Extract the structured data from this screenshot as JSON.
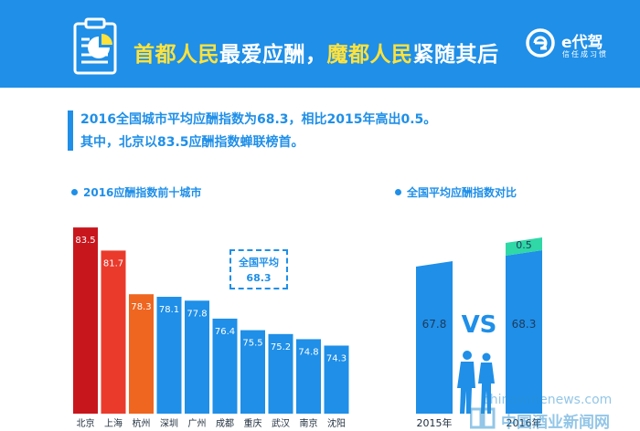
{
  "header": {
    "title_yellow_1": "首都人民",
    "title_white_1": "最爱应酬，",
    "title_yellow_2": "魔都人民",
    "title_white_2": "紧随其后",
    "brand_name": "e代驾",
    "brand_slogan": "信任成习惯",
    "colors": {
      "background": "#1f8fe8",
      "highlight": "#ffe23c"
    },
    "icons": [
      "clipboard-chart-icon",
      "edaijia-logo-icon"
    ]
  },
  "intro": {
    "line1": "2016全国城市平均应酬指数为68.3，相比2015年高出0.5。",
    "line2": "其中，北京以83.5应酬指数蝉联榜首。"
  },
  "sections": {
    "left_title": "2016应酬指数前十城市",
    "right_title": "全国平均应酬指数对比"
  },
  "avg_box": {
    "label": "全国平均",
    "value": "68.3"
  },
  "chart_data": [
    {
      "type": "bar",
      "title": "2016应酬指数前十城市",
      "categories": [
        "北京",
        "上海",
        "杭州",
        "深圳",
        "广州",
        "成都",
        "重庆",
        "武汉",
        "南京",
        "沈阳"
      ],
      "values": [
        83.5,
        81.7,
        78.3,
        78.1,
        77.8,
        76.4,
        75.5,
        75.2,
        74.8,
        74.3
      ],
      "value_labels": [
        "83.5",
        "81.7",
        "78.3",
        "78.1",
        "77.8",
        "76.4",
        "75.5",
        "75.2",
        "74.8",
        "74.3"
      ],
      "colors": [
        "#c8161d",
        "#ea3a2c",
        "#ef6620",
        "#1f8fe8",
        "#1f8fe8",
        "#1f8fe8",
        "#1f8fe8",
        "#1f8fe8",
        "#1f8fe8",
        "#1f8fe8"
      ],
      "ylim": [
        69,
        85
      ],
      "grid": false,
      "reference_line": {
        "label": "全国平均",
        "value": 68.3
      }
    },
    {
      "type": "bar",
      "title": "全国平均应酬指数对比",
      "categories": [
        "2015年",
        "2016年"
      ],
      "values": [
        67.8,
        68.3
      ],
      "value_labels": [
        "67.8",
        "68.3"
      ],
      "difference": {
        "value": 0.5,
        "label": "0.5",
        "color": "#2fd8a6"
      },
      "center_label": "VS",
      "colors": [
        "#1f8fe8",
        "#1f8fe8"
      ],
      "grid": false
    }
  ],
  "watermark": {
    "url": "chinawinenews.com",
    "name": "中国酒业新闻网"
  }
}
